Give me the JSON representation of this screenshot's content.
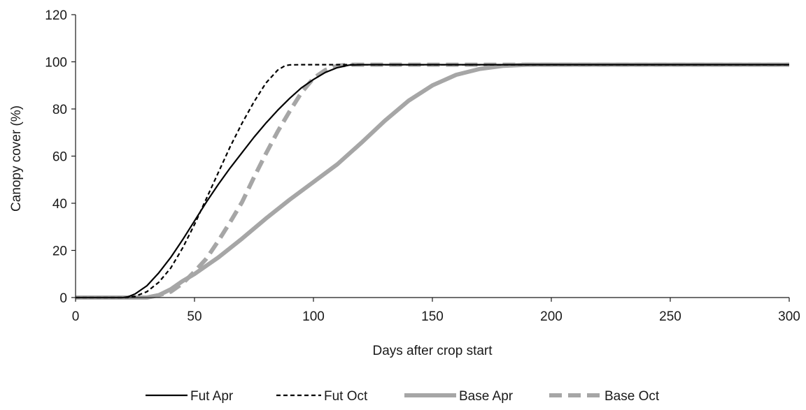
{
  "chart_data": {
    "type": "line",
    "title": "",
    "xlabel": "Days after crop start",
    "ylabel": "Canopy cover (%)",
    "xlim": [
      0,
      300
    ],
    "ylim": [
      0,
      120
    ],
    "xticks": [
      0,
      50,
      100,
      150,
      200,
      250,
      300
    ],
    "yticks": [
      0,
      20,
      40,
      60,
      80,
      100,
      120
    ],
    "grid": false,
    "legend_position": "bottom",
    "series": [
      {
        "name": "Fut Apr",
        "color": "#000000",
        "style": "solid-thin",
        "x": [
          0,
          20,
          22,
          25,
          30,
          35,
          40,
          45,
          50,
          55,
          60,
          65,
          70,
          75,
          80,
          85,
          90,
          95,
          100,
          105,
          110,
          115,
          120,
          150,
          200,
          250,
          300
        ],
        "y": [
          0,
          0,
          0.3,
          1.5,
          5,
          10.5,
          17,
          24.5,
          32.5,
          40.5,
          48,
          55,
          61.5,
          68,
          74,
          79.5,
          84.5,
          89,
          92.5,
          95.5,
          97.5,
          98.6,
          98.8,
          98.8,
          98.8,
          98.8,
          98.8
        ]
      },
      {
        "name": "Fut Oct",
        "color": "#000000",
        "style": "dashed-thin",
        "x": [
          0,
          22,
          25,
          30,
          35,
          40,
          45,
          50,
          55,
          60,
          65,
          70,
          75,
          80,
          85,
          88,
          90,
          95,
          100,
          150,
          200,
          250,
          300
        ],
        "y": [
          0,
          0,
          0.5,
          2.5,
          6.5,
          12.5,
          21,
          31,
          42,
          53,
          64,
          74,
          83,
          91,
          96.5,
          98.3,
          98.7,
          98.8,
          98.8,
          98.8,
          98.8,
          98.8,
          98.8
        ]
      },
      {
        "name": "Base Apr",
        "color": "#a6a6a6",
        "style": "solid-thick",
        "x": [
          0,
          30,
          35,
          40,
          45,
          50,
          55,
          60,
          70,
          80,
          90,
          100,
          110,
          120,
          130,
          140,
          150,
          160,
          170,
          180,
          190,
          200,
          250,
          300
        ],
        "y": [
          0,
          0,
          1,
          3.5,
          7,
          10,
          13.5,
          17,
          25,
          33.5,
          41.5,
          49,
          56.5,
          65.5,
          75,
          83.5,
          90,
          94.5,
          97,
          98.3,
          98.8,
          98.8,
          98.8,
          98.8
        ]
      },
      {
        "name": "Base Oct",
        "color": "#a6a6a6",
        "style": "dashed-thick",
        "x": [
          0,
          30,
          35,
          40,
          45,
          50,
          55,
          60,
          65,
          70,
          75,
          80,
          85,
          90,
          95,
          100,
          105,
          110,
          115,
          150,
          200,
          250,
          300
        ],
        "y": [
          0,
          0,
          1,
          2.5,
          6,
          11,
          16.5,
          24,
          32,
          40.5,
          51,
          61,
          70.5,
          79,
          87,
          93,
          96.5,
          98.3,
          98.8,
          98.8,
          98.8,
          98.8,
          98.8
        ]
      }
    ]
  }
}
